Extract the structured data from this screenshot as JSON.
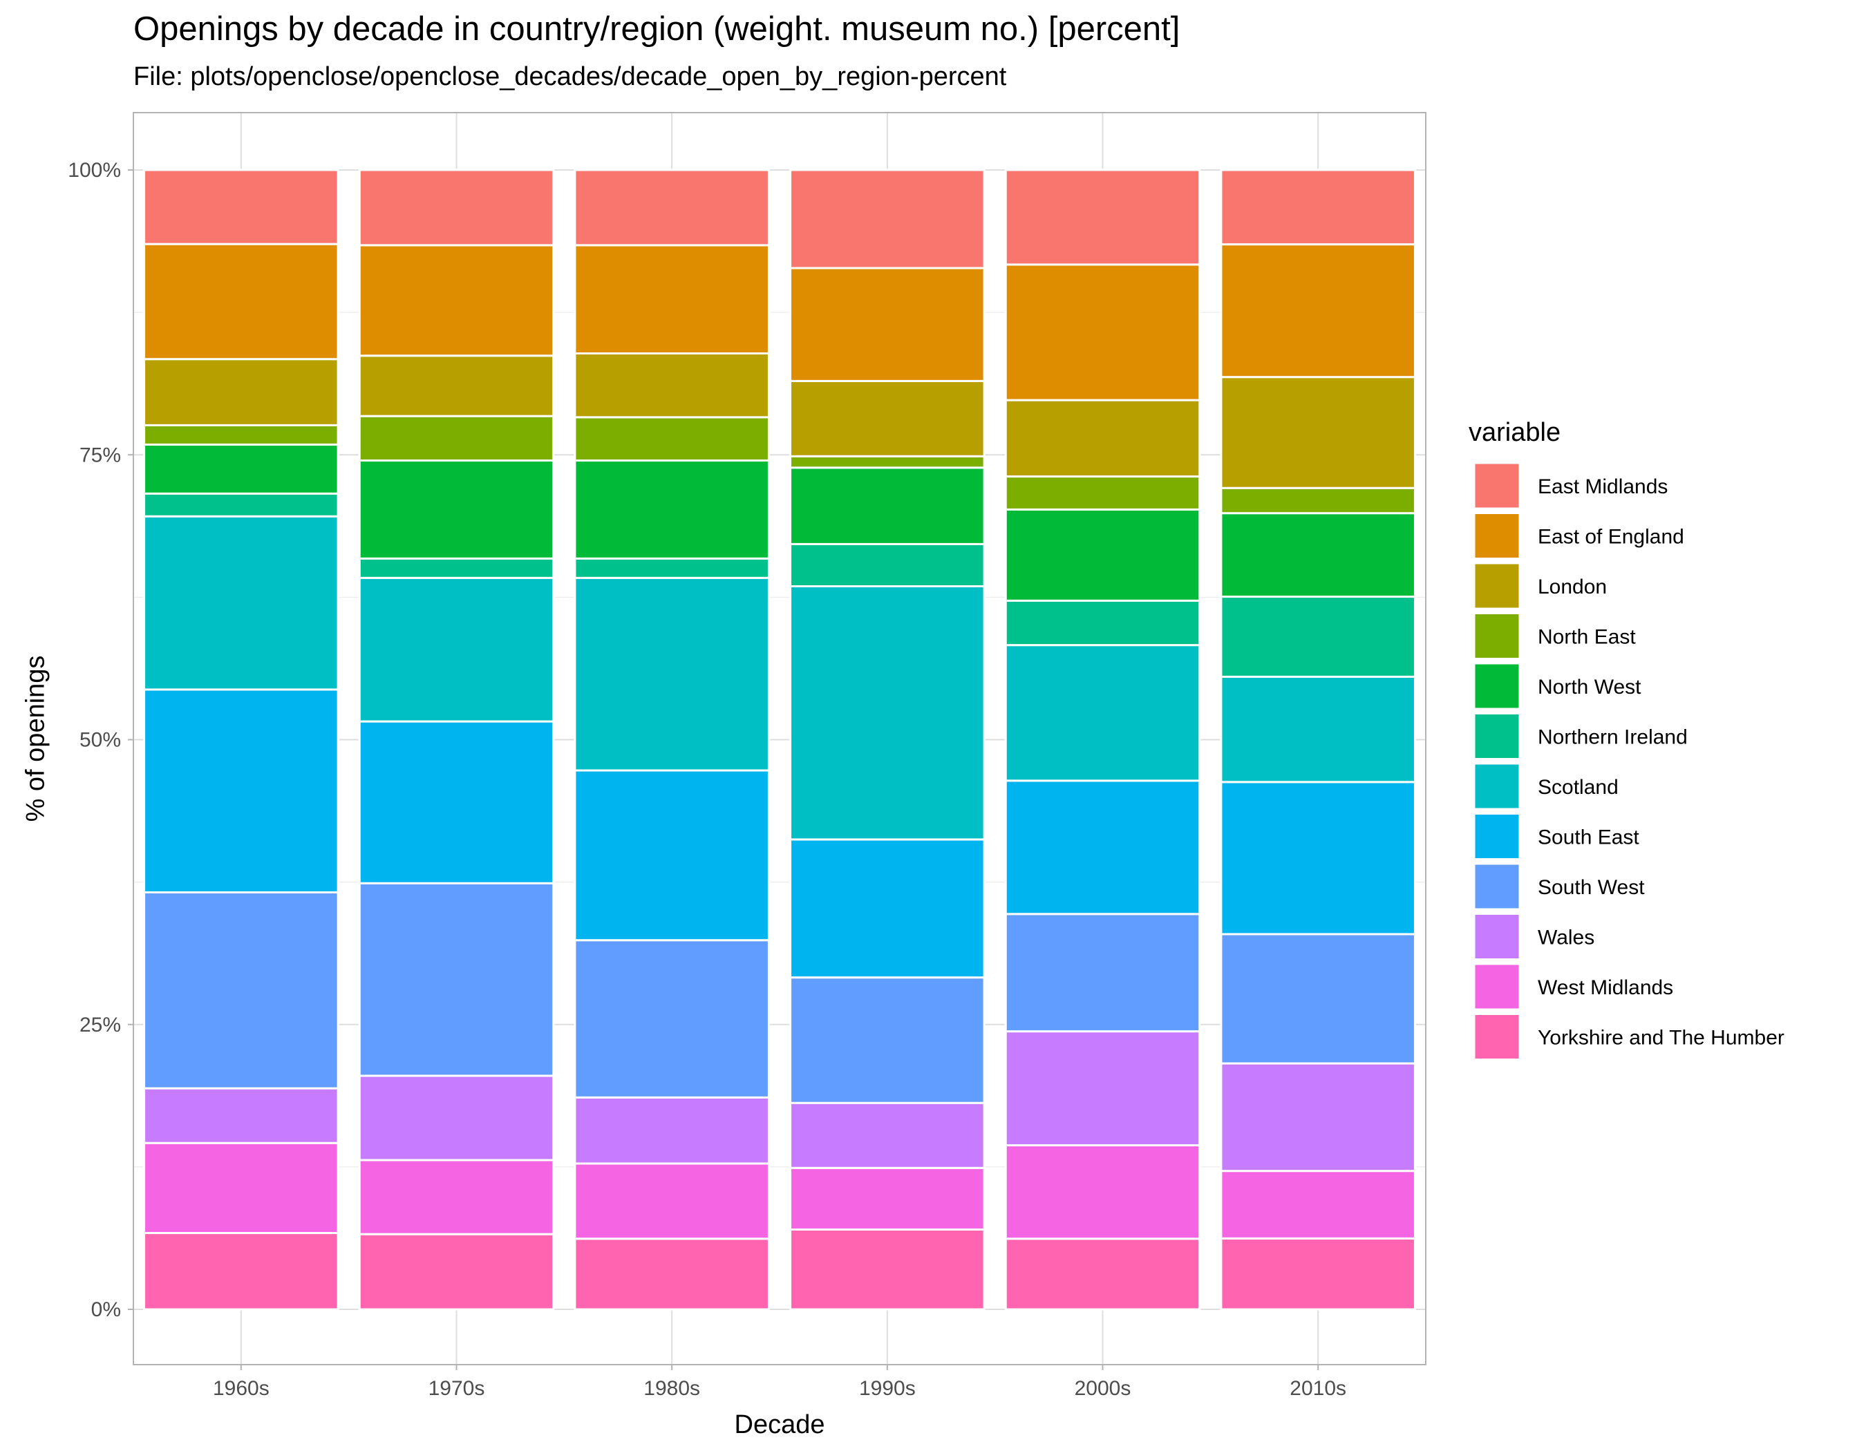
{
  "chart_data": {
    "type": "bar",
    "stacked": true,
    "title": "Openings by decade in country/region (weight. museum no.) [percent]",
    "subtitle": "File: plots/openclose/openclose_decades/decade_open_by_region-percent",
    "xlabel": "Decade",
    "ylabel": "% of openings",
    "ylim": [
      0,
      100
    ],
    "y_ticks": [
      "0%",
      "25%",
      "50%",
      "75%",
      "100%"
    ],
    "y_tick_values": [
      0,
      25,
      50,
      75,
      100
    ],
    "grid": true,
    "legend_title": "variable",
    "legend_position": "right",
    "categories": [
      "1960s",
      "1970s",
      "1980s",
      "1990s",
      "2000s",
      "2010s"
    ],
    "series": [
      {
        "name": "East Midlands",
        "color": "#F8766D",
        "values": [
          6.5,
          6.6,
          6.6,
          8.6,
          8.3,
          6.5
        ]
      },
      {
        "name": "East of England",
        "color": "#DE8C00",
        "values": [
          10.1,
          9.7,
          9.5,
          9.9,
          11.9,
          11.6
        ]
      },
      {
        "name": "London",
        "color": "#B79F00",
        "values": [
          5.8,
          5.3,
          5.6,
          6.6,
          6.7,
          9.7
        ]
      },
      {
        "name": "North East",
        "color": "#7CAE00",
        "values": [
          1.7,
          3.9,
          3.8,
          1.0,
          2.9,
          2.2
        ]
      },
      {
        "name": "North West",
        "color": "#00BA38",
        "values": [
          4.3,
          8.6,
          8.6,
          6.7,
          8.0,
          7.3
        ]
      },
      {
        "name": "Northern Ireland",
        "color": "#00C08B",
        "values": [
          2.0,
          1.7,
          1.7,
          3.7,
          3.9,
          7.0
        ]
      },
      {
        "name": "Scotland",
        "color": "#00BFC4",
        "values": [
          15.2,
          12.6,
          16.9,
          22.2,
          11.9,
          9.2
        ]
      },
      {
        "name": "South East",
        "color": "#00B4F0",
        "values": [
          17.8,
          14.2,
          14.9,
          12.1,
          11.7,
          13.3
        ]
      },
      {
        "name": "South West",
        "color": "#619CFF",
        "values": [
          17.2,
          16.9,
          13.8,
          11.0,
          10.3,
          11.3
        ]
      },
      {
        "name": "Wales",
        "color": "#C77CFF",
        "values": [
          4.8,
          7.4,
          5.8,
          5.7,
          10.0,
          9.4
        ]
      },
      {
        "name": "West Midlands",
        "color": "#F564E3",
        "values": [
          7.9,
          6.5,
          6.6,
          5.4,
          8.2,
          5.9
        ]
      },
      {
        "name": "Yorkshire and The Humber",
        "color": "#FF64B0",
        "values": [
          6.7,
          6.6,
          6.2,
          7.0,
          6.2,
          6.2
        ]
      }
    ]
  }
}
